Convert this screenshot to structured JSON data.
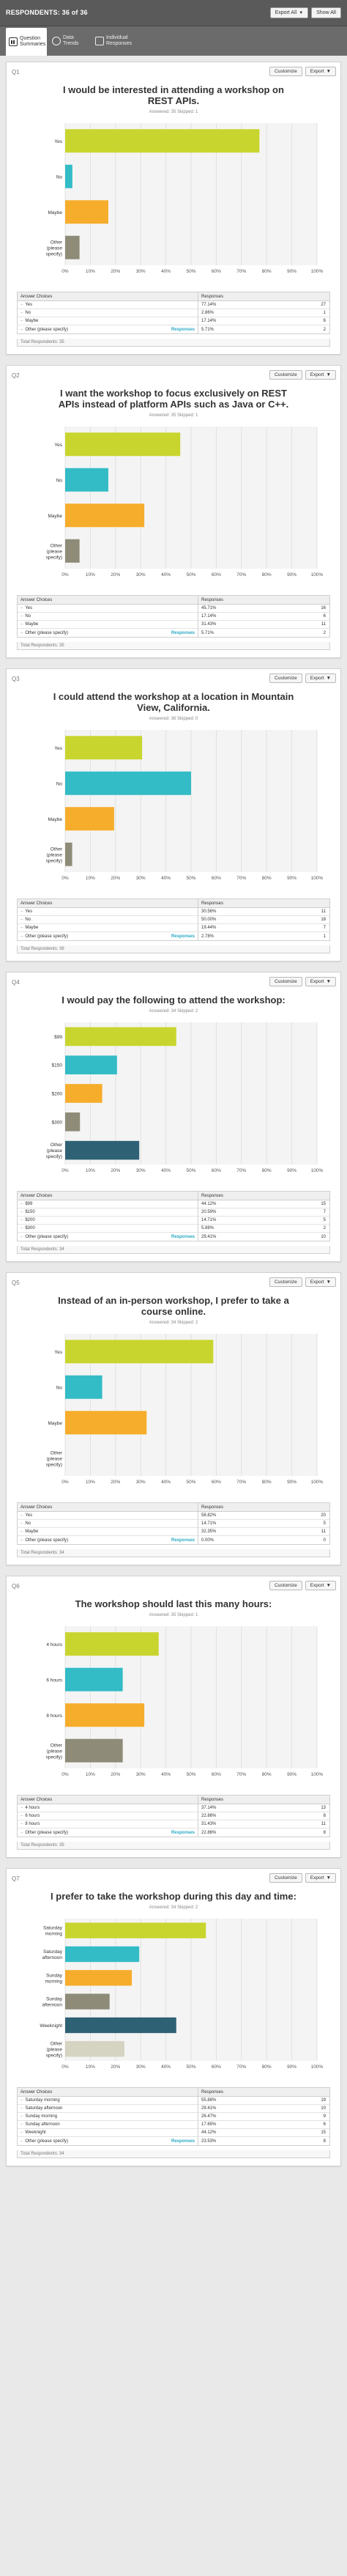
{
  "header": {
    "respondents": "RESPONDENTS: 36 of 36",
    "export_all": "Export All",
    "show_all": "Show All"
  },
  "tabs": [
    {
      "label": "Question Summaries"
    },
    {
      "label": "Data Trends"
    },
    {
      "label": "Individual Responses"
    }
  ],
  "labels": {
    "customize": "Customize",
    "export": "Export",
    "answer_choices": "Answer Choices",
    "responses": "Responses",
    "responses_link": "Responses"
  },
  "axis_ticks": [
    "0%",
    "10%",
    "20%",
    "30%",
    "40%",
    "50%",
    "60%",
    "70%",
    "80%",
    "90%",
    "100%"
  ],
  "colors": {
    "lime": "#c8d52e",
    "teal": "#33bcc6",
    "orange": "#f6ad2b",
    "gray": "#8e8c78",
    "navy": "#2e6173",
    "tan": "#d5d3c1"
  },
  "questions": [
    {
      "num": "Q1",
      "title": "I would be interested in attending a workshop on REST APIs.",
      "answered": "Answered: 35    Skipped: 1",
      "total": "Total Respondents: 35",
      "rows": [
        {
          "label": "Yes",
          "pct": "77.14%",
          "count": "27"
        },
        {
          "label": "No",
          "pct": "2.86%",
          "count": "1"
        },
        {
          "label": "Maybe",
          "pct": "17.14%",
          "count": "6"
        },
        {
          "label": "Other (please specify)",
          "pct": "5.71%",
          "count": "2",
          "link": true
        }
      ]
    },
    {
      "num": "Q2",
      "title": "I want the workshop to focus exclusively on REST APIs instead of platform APIs such as Java or C++.",
      "answered": "Answered: 35    Skipped: 1",
      "total": "Total Respondents: 35",
      "rows": [
        {
          "label": "Yes",
          "pct": "45.71%",
          "count": "16"
        },
        {
          "label": "No",
          "pct": "17.14%",
          "count": "6"
        },
        {
          "label": "Maybe",
          "pct": "31.43%",
          "count": "11"
        },
        {
          "label": "Other (please specify)",
          "pct": "5.71%",
          "count": "2",
          "link": true
        }
      ]
    },
    {
      "num": "Q3",
      "title": "I could attend the workshop at a location in Mountain View, California.",
      "answered": "Answered: 36    Skipped: 0",
      "total": "Total Respondents: 36",
      "rows": [
        {
          "label": "Yes",
          "pct": "30.56%",
          "count": "11"
        },
        {
          "label": "No",
          "pct": "50.00%",
          "count": "18"
        },
        {
          "label": "Maybe",
          "pct": "19.44%",
          "count": "7"
        },
        {
          "label": "Other (please specify)",
          "pct": "2.78%",
          "count": "1",
          "link": true
        }
      ]
    },
    {
      "num": "Q4",
      "title": "I would pay the following to attend the workshop:",
      "answered": "Answered: 34    Skipped: 2",
      "total": "Total Respondents: 34",
      "rows": [
        {
          "label": "$99",
          "pct": "44.12%",
          "count": "15"
        },
        {
          "label": "$150",
          "pct": "20.59%",
          "count": "7"
        },
        {
          "label": "$200",
          "pct": "14.71%",
          "count": "5"
        },
        {
          "label": "$300",
          "pct": "5.88%",
          "count": "2"
        },
        {
          "label": "Other (please specify)",
          "pct": "29.41%",
          "count": "10",
          "link": true
        }
      ]
    },
    {
      "num": "Q5",
      "title": "Instead of an in-person workshop, I prefer to take a course online.",
      "answered": "Answered: 34    Skipped: 2",
      "total": "Total Respondents: 34",
      "rows": [
        {
          "label": "Yes",
          "pct": "58.82%",
          "count": "20"
        },
        {
          "label": "No",
          "pct": "14.71%",
          "count": "5"
        },
        {
          "label": "Maybe",
          "pct": "32.35%",
          "count": "11"
        },
        {
          "label": "Other (please specify)",
          "pct": "0.00%",
          "count": "0",
          "link": true
        }
      ]
    },
    {
      "num": "Q6",
      "title": "The workshop should last this many hours:",
      "answered": "Answered: 35    Skipped: 1",
      "total": "Total Respondents: 35",
      "rows": [
        {
          "label": "4 hours",
          "pct": "37.14%",
          "count": "13"
        },
        {
          "label": "6 hours",
          "pct": "22.86%",
          "count": "8"
        },
        {
          "label": "8 hours",
          "pct": "31.43%",
          "count": "11"
        },
        {
          "label": "Other (please specify)",
          "pct": "22.86%",
          "count": "8",
          "link": true
        }
      ]
    },
    {
      "num": "Q7",
      "title": "I prefer to take the workshop during this day and time:",
      "answered": "Answered: 34    Skipped: 2",
      "total": "Total Respondents: 34",
      "rows": [
        {
          "label": "Saturday morning",
          "pct": "55.88%",
          "count": "19"
        },
        {
          "label": "Saturday afternoon",
          "pct": "29.41%",
          "count": "10"
        },
        {
          "label": "Sunday morning",
          "pct": "26.47%",
          "count": "9"
        },
        {
          "label": "Sunday afternoon",
          "pct": "17.65%",
          "count": "6"
        },
        {
          "label": "Weeknight",
          "pct": "44.12%",
          "count": "15"
        },
        {
          "label": "Other (please specify)",
          "pct": "23.53%",
          "count": "8",
          "link": true
        }
      ]
    }
  ],
  "chart_data": [
    {
      "type": "bar",
      "orientation": "horizontal",
      "title": "I would be interested in attending a workshop on REST APIs.",
      "categories": [
        "Yes",
        "No",
        "Maybe",
        "Other (please specify)"
      ],
      "values": [
        77.14,
        2.86,
        17.14,
        5.71
      ],
      "colors": [
        "#c8d52e",
        "#33bcc6",
        "#f6ad2b",
        "#8e8c78"
      ],
      "xlim": [
        0,
        100
      ],
      "grid": true
    },
    {
      "type": "bar",
      "orientation": "horizontal",
      "title": "I want the workshop to focus exclusively on REST APIs instead of platform APIs such as Java or C++.",
      "categories": [
        "Yes",
        "No",
        "Maybe",
        "Other (please specify)"
      ],
      "values": [
        45.71,
        17.14,
        31.43,
        5.71
      ],
      "colors": [
        "#c8d52e",
        "#33bcc6",
        "#f6ad2b",
        "#8e8c78"
      ],
      "xlim": [
        0,
        100
      ],
      "grid": true
    },
    {
      "type": "bar",
      "orientation": "horizontal",
      "title": "I could attend the workshop at a location in Mountain View, California.",
      "categories": [
        "Yes",
        "No",
        "Maybe",
        "Other (please specify)"
      ],
      "values": [
        30.56,
        50.0,
        19.44,
        2.78
      ],
      "colors": [
        "#c8d52e",
        "#33bcc6",
        "#f6ad2b",
        "#8e8c78"
      ],
      "xlim": [
        0,
        100
      ],
      "grid": true
    },
    {
      "type": "bar",
      "orientation": "horizontal",
      "title": "I would pay the following to attend the workshop:",
      "categories": [
        "$99",
        "$150",
        "$200",
        "$300",
        "Other (please specify)"
      ],
      "values": [
        44.12,
        20.59,
        14.71,
        5.88,
        29.41
      ],
      "colors": [
        "#c8d52e",
        "#33bcc6",
        "#f6ad2b",
        "#8e8c78",
        "#2e6173"
      ],
      "xlim": [
        0,
        100
      ],
      "grid": true
    },
    {
      "type": "bar",
      "orientation": "horizontal",
      "title": "Instead of an in-person workshop, I prefer to take a course online.",
      "categories": [
        "Yes",
        "No",
        "Maybe",
        "Other (please specify)"
      ],
      "values": [
        58.82,
        14.71,
        32.35,
        0.0
      ],
      "colors": [
        "#c8d52e",
        "#33bcc6",
        "#f6ad2b",
        "#8e8c78"
      ],
      "xlim": [
        0,
        100
      ],
      "grid": true
    },
    {
      "type": "bar",
      "orientation": "horizontal",
      "title": "The workshop should last this many hours:",
      "categories": [
        "4 hours",
        "6 hours",
        "8 hours",
        "Other (please specify)"
      ],
      "values": [
        37.14,
        22.86,
        31.43,
        22.86
      ],
      "colors": [
        "#c8d52e",
        "#33bcc6",
        "#f6ad2b",
        "#8e8c78"
      ],
      "xlim": [
        0,
        100
      ],
      "grid": true
    },
    {
      "type": "bar",
      "orientation": "horizontal",
      "title": "I prefer to take the workshop during this day and time:",
      "categories": [
        "Saturday morning",
        "Saturday afternoon",
        "Sunday morning",
        "Sunday afternoon",
        "Weeknight",
        "Other (please specify)"
      ],
      "values": [
        55.88,
        29.41,
        26.47,
        17.65,
        44.12,
        23.53
      ],
      "colors": [
        "#c8d52e",
        "#33bcc6",
        "#f6ad2b",
        "#8e8c78",
        "#2e6173",
        "#d5d3c1"
      ],
      "xlim": [
        0,
        100
      ],
      "grid": true
    }
  ]
}
